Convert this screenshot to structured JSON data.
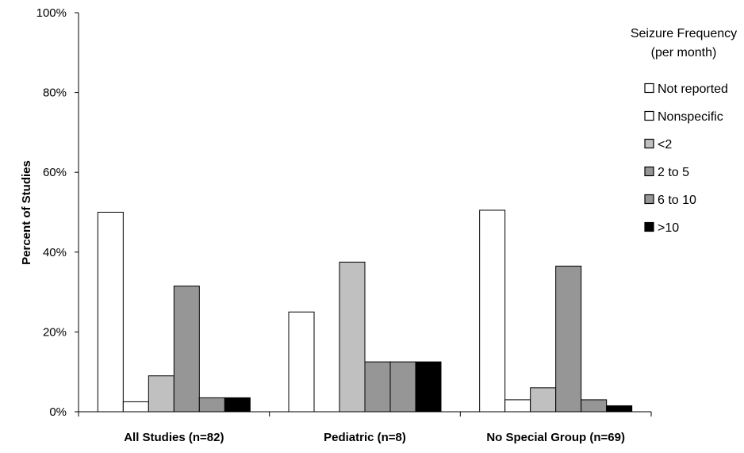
{
  "chart_data": {
    "type": "bar",
    "title": "",
    "xlabel": "",
    "ylabel": "Percent of Studies",
    "ylim": [
      0,
      100
    ],
    "yticks": [
      "0%",
      "20%",
      "40%",
      "60%",
      "80%",
      "100%"
    ],
    "categories": [
      "All Studies (n=82)",
      "Pediatric (n=8)",
      "No Special Group (n=69)"
    ],
    "legend": {
      "title_line1": "Seizure Frequency",
      "title_line2": "(per month)",
      "placement": "top-right"
    },
    "series": [
      {
        "name": "Not reported",
        "color": "#ffffff",
        "values": [
          50,
          25,
          50.5
        ]
      },
      {
        "name": "Nonspecific",
        "color": "#ffffff",
        "values": [
          2.5,
          0,
          3
        ]
      },
      {
        "name": "<2",
        "color": "#c0c0c0",
        "values": [
          9,
          37.5,
          6
        ]
      },
      {
        "name": "2 to 5",
        "color": "#969696",
        "values": [
          31.5,
          12.5,
          36.5
        ]
      },
      {
        "name": "6 to 10",
        "color": "#969696",
        "values": [
          3.5,
          12.5,
          3
        ]
      },
      {
        "name": ">10",
        "color": "#000000",
        "values": [
          3.5,
          12.5,
          1.5
        ]
      }
    ],
    "grid": false
  }
}
